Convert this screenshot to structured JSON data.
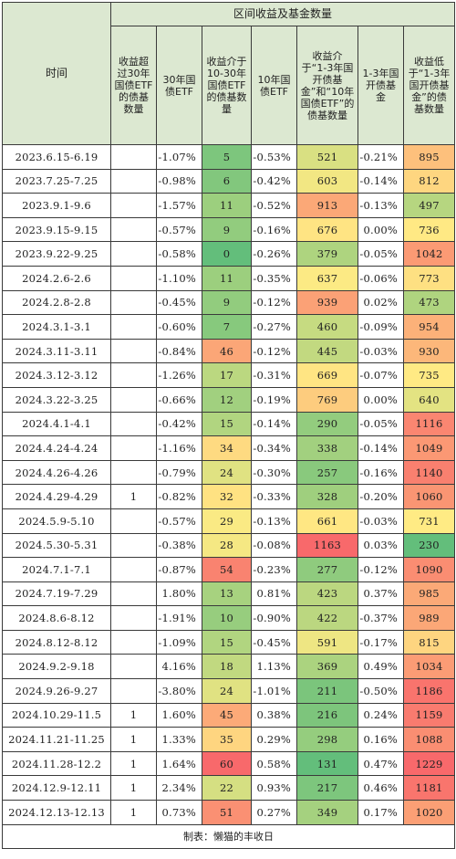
{
  "table": {
    "time_header": "时间",
    "group_header": "区间收益及基金数量",
    "columns": [
      "收益超过30年国债ETF的债基数量",
      "30年国债ETF",
      "收益介于10-30年国债ETF的债基数量",
      "10年国债ETF",
      "收益介于“1-3年国开债基金”和“10年国债ETF”的债基数量",
      "1-3年国开债基金",
      "收益低于“1-3年国开债基金”的债基数量"
    ],
    "rows": [
      {
        "date": "2023.6.15-6.19",
        "a": "",
        "b": "-1.07%",
        "c": "5",
        "d": "-0.53%",
        "e": "521",
        "f": "-0.21%",
        "g": "895"
      },
      {
        "date": "2023.7.25-7.25",
        "a": "",
        "b": "-0.98%",
        "c": "6",
        "d": "-0.42%",
        "e": "603",
        "f": "-0.14%",
        "g": "812"
      },
      {
        "date": "2023.9.1-9.6",
        "a": "",
        "b": "-1.57%",
        "c": "11",
        "d": "-0.52%",
        "e": "913",
        "f": "-0.13%",
        "g": "497"
      },
      {
        "date": "2023.9.15-9.15",
        "a": "",
        "b": "-0.57%",
        "c": "9",
        "d": "-0.16%",
        "e": "676",
        "f": "0.00%",
        "g": "736"
      },
      {
        "date": "2023.9.22-9.25",
        "a": "",
        "b": "-0.58%",
        "c": "0",
        "d": "-0.26%",
        "e": "379",
        "f": "-0.05%",
        "g": "1042"
      },
      {
        "date": "2024.2.6-2.6",
        "a": "",
        "b": "-1.10%",
        "c": "11",
        "d": "-0.35%",
        "e": "637",
        "f": "-0.06%",
        "g": "773"
      },
      {
        "date": "2024.2.8-2.8",
        "a": "",
        "b": "-0.45%",
        "c": "9",
        "d": "-0.12%",
        "e": "939",
        "f": "0.02%",
        "g": "473"
      },
      {
        "date": "2024.3.1-3.1",
        "a": "",
        "b": "-0.60%",
        "c": "7",
        "d": "-0.27%",
        "e": "460",
        "f": "-0.09%",
        "g": "954"
      },
      {
        "date": "2024.3.11-3.11",
        "a": "",
        "b": "-0.84%",
        "c": "46",
        "d": "-0.12%",
        "e": "445",
        "f": "-0.03%",
        "g": "930"
      },
      {
        "date": "2024.3.12-3.12",
        "a": "",
        "b": "-1.26%",
        "c": "17",
        "d": "-0.31%",
        "e": "669",
        "f": "-0.07%",
        "g": "735"
      },
      {
        "date": "2024.3.22-3.25",
        "a": "",
        "b": "-0.66%",
        "c": "12",
        "d": "-0.19%",
        "e": "769",
        "f": "0.00%",
        "g": "640"
      },
      {
        "date": "2024.4.1-4.1",
        "a": "",
        "b": "-0.42%",
        "c": "15",
        "d": "-0.14%",
        "e": "290",
        "f": "-0.05%",
        "g": "1116"
      },
      {
        "date": "2024.4.24-4.24",
        "a": "",
        "b": "-1.16%",
        "c": "34",
        "d": "-0.34%",
        "e": "338",
        "f": "-0.14%",
        "g": "1049"
      },
      {
        "date": "2024.4.26-4.26",
        "a": "",
        "b": "-0.79%",
        "c": "24",
        "d": "-0.30%",
        "e": "257",
        "f": "-0.16%",
        "g": "1140"
      },
      {
        "date": "2024.4.29-4.29",
        "a": "1",
        "b": "-0.82%",
        "c": "32",
        "d": "-0.33%",
        "e": "328",
        "f": "-0.20%",
        "g": "1060"
      },
      {
        "date": "2024.5.9-5.10",
        "a": "",
        "b": "-0.57%",
        "c": "29",
        "d": "-0.13%",
        "e": "661",
        "f": "-0.03%",
        "g": "731"
      },
      {
        "date": "2024.5.30-5.31",
        "a": "",
        "b": "-0.38%",
        "c": "28",
        "d": "-0.08%",
        "e": "1163",
        "f": "0.03%",
        "g": "230"
      },
      {
        "date": "2024.7.1-7.1",
        "a": "",
        "b": "-0.87%",
        "c": "54",
        "d": "-0.23%",
        "e": "277",
        "f": "-0.12%",
        "g": "1090"
      },
      {
        "date": "2024.7.19-7.29",
        "a": "",
        "b": "1.80%",
        "c": "13",
        "d": "0.81%",
        "e": "423",
        "f": "0.37%",
        "g": "985"
      },
      {
        "date": "2024.8.6-8.12",
        "a": "",
        "b": "-1.91%",
        "c": "10",
        "d": "-0.90%",
        "e": "422",
        "f": "-0.37%",
        "g": "989"
      },
      {
        "date": "2024.8.12-8.12",
        "a": "",
        "b": "-1.09%",
        "c": "15",
        "d": "-0.45%",
        "e": "591",
        "f": "-0.17%",
        "g": "815"
      },
      {
        "date": "2024.9.2-9.18",
        "a": "",
        "b": "4.16%",
        "c": "18",
        "d": "1.13%",
        "e": "369",
        "f": "0.49%",
        "g": "1034"
      },
      {
        "date": "2024.9.26-9.27",
        "a": "",
        "b": "-3.80%",
        "c": "24",
        "d": "-1.01%",
        "e": "211",
        "f": "-0.50%",
        "g": "1186"
      },
      {
        "date": "2024.10.29-11.5",
        "a": "1",
        "b": "1.60%",
        "c": "45",
        "d": "0.38%",
        "e": "216",
        "f": "0.24%",
        "g": "1159"
      },
      {
        "date": "2024.11.21-11.25",
        "a": "1",
        "b": "1.33%",
        "c": "35",
        "d": "0.29%",
        "e": "298",
        "f": "0.16%",
        "g": "1088"
      },
      {
        "date": "2024.11.28-12.2",
        "a": "1",
        "b": "1.64%",
        "c": "60",
        "d": "0.58%",
        "e": "131",
        "f": "0.47%",
        "g": "1229"
      },
      {
        "date": "2024.12.9-12.11",
        "a": "1",
        "b": "2.34%",
        "c": "22",
        "d": "0.93%",
        "e": "217",
        "f": "0.46%",
        "g": "1181"
      },
      {
        "date": "2024.12.13-12.13",
        "a": "1",
        "b": "0.73%",
        "c": "51",
        "d": "0.27%",
        "e": "349",
        "f": "0.17%",
        "g": "1020"
      }
    ],
    "footer": "制表：懒猫的丰收日"
  },
  "colors": {
    "header_bg": "#dce8d1",
    "border": "#3a3a3a",
    "scale_low": "#63be7b",
    "scale_mid": "#ffeb84",
    "scale_high": "#f8696b"
  }
}
